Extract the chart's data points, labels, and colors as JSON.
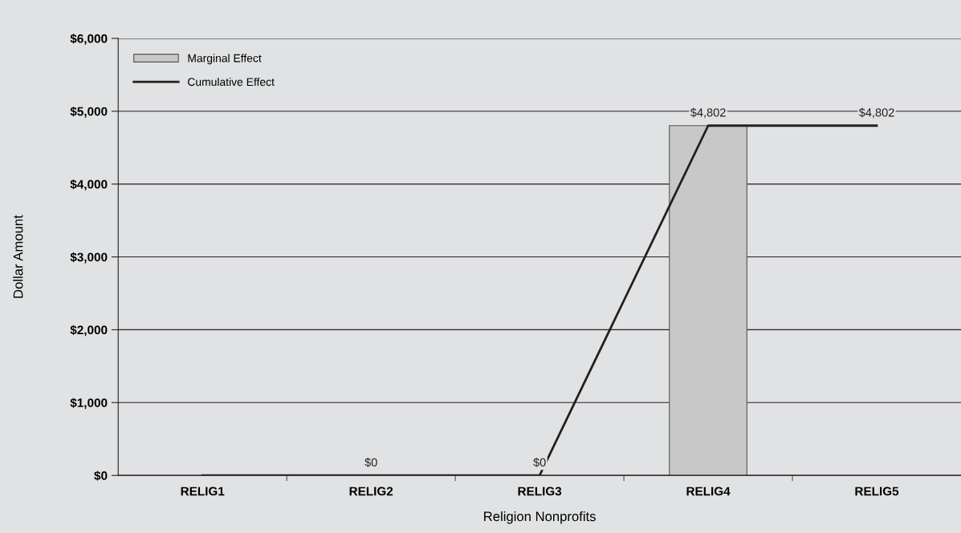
{
  "chart_data": {
    "type": "bar",
    "xlabel": "Religion Nonprofits",
    "ylabel": "Dollar Amount",
    "categories": [
      "RELIG1",
      "RELIG2",
      "RELIG3",
      "RELIG4",
      "RELIG5"
    ],
    "series": [
      {
        "name": "Marginal Effect",
        "color": "#c8c8c8",
        "values": [
          null,
          null,
          null,
          4802,
          null
        ]
      },
      {
        "name": "Cumulative Effect",
        "type": "line",
        "color": "#231f20",
        "values": [
          0,
          0,
          0,
          4802,
          4802
        ],
        "value_labels": [
          null,
          "$0",
          "$0",
          "$4,802",
          "$4,802"
        ]
      }
    ],
    "ylim": [
      0,
      6000
    ],
    "yticks": [
      {
        "value": 0,
        "label": "$0"
      },
      {
        "value": 1000,
        "label": "$1,000"
      },
      {
        "value": 2000,
        "label": "$2,000"
      },
      {
        "value": 3000,
        "label": "$3,000"
      },
      {
        "value": 4000,
        "label": "$4,000"
      },
      {
        "value": 5000,
        "label": "$5,000"
      },
      {
        "value": 6000,
        "label": "$6,000"
      }
    ],
    "grid": "y",
    "legend": "top left",
    "marker": "none",
    "line_style": "solid"
  }
}
